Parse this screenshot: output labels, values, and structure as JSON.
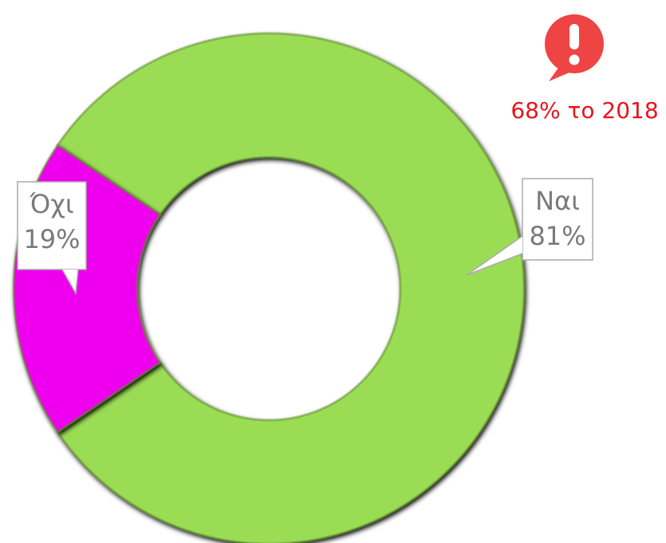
{
  "chart_data": {
    "type": "donut",
    "categories": [
      "Ναι",
      "Όχι"
    ],
    "values": [
      81,
      19
    ],
    "value_labels": [
      "81%",
      "19%"
    ],
    "colors": [
      "#9bdc55",
      "#ee00ee"
    ],
    "annotation": "68% το 2018"
  }
}
